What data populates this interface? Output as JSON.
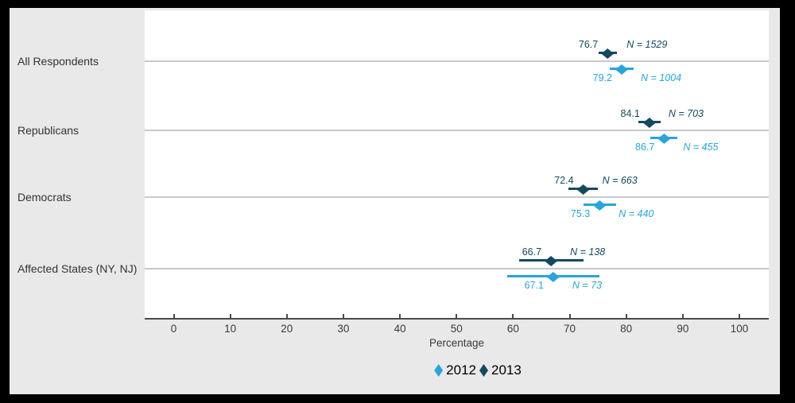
{
  "colors": {
    "frame": "#000000",
    "panel_bg": "#e9e9e9",
    "plot_bg": "#ffffff",
    "gridline": "#c9c9c9",
    "axis": "#4a4a4a",
    "tick_text": "#3a3a3a",
    "category_text": "#333333",
    "legend_text": "#000000",
    "series_2012": "#2aa5d8",
    "series_2013": "#16495e"
  },
  "chart_data": {
    "type": "scatter",
    "subtype": "dot-plot-with-error-bars",
    "title": "",
    "xlabel": "Percentage",
    "ylabel": "",
    "xlim": [
      -5,
      105
    ],
    "x_ticks": [
      "0",
      "10",
      "20",
      "30",
      "40",
      "50",
      "60",
      "70",
      "80",
      "90",
      "100"
    ],
    "x_tick_values": [
      0,
      10,
      20,
      30,
      40,
      50,
      60,
      70,
      80,
      90,
      100
    ],
    "grid": "one horizontal gridline per category",
    "legend_position": "bottom-center",
    "legend": [
      {
        "name": "2012",
        "color_key": "series_2012"
      },
      {
        "name": "2013",
        "color_key": "series_2013"
      }
    ],
    "categories": [
      {
        "label": "All Respondents",
        "points": [
          {
            "series": "2013",
            "value": 76.7,
            "value_label": "76.7",
            "n_label": "N = 1529",
            "ci_low": 75.1,
            "ci_high": 78.3
          },
          {
            "series": "2012",
            "value": 79.2,
            "value_label": "79.2",
            "n_label": "N = 1004",
            "ci_low": 77.1,
            "ci_high": 81.3
          }
        ]
      },
      {
        "label": "Republicans",
        "points": [
          {
            "series": "2013",
            "value": 84.1,
            "value_label": "84.1",
            "n_label": "N = 703",
            "ci_low": 82.1,
            "ci_high": 86.1
          },
          {
            "series": "2012",
            "value": 86.7,
            "value_label": "86.7",
            "n_label": "N = 455",
            "ci_low": 84.3,
            "ci_high": 89.1
          }
        ]
      },
      {
        "label": "Democrats",
        "points": [
          {
            "series": "2013",
            "value": 72.4,
            "value_label": "72.4",
            "n_label": "N = 663",
            "ci_low": 69.8,
            "ci_high": 75.0
          },
          {
            "series": "2012",
            "value": 75.3,
            "value_label": "75.3",
            "n_label": "N = 440",
            "ci_low": 72.4,
            "ci_high": 78.2
          }
        ]
      },
      {
        "label": "Affected States (NY, NJ)",
        "points": [
          {
            "series": "2013",
            "value": 66.7,
            "value_label": "66.7",
            "n_label": "N = 138",
            "ci_low": 61.0,
            "ci_high": 72.4
          },
          {
            "series": "2012",
            "value": 67.1,
            "value_label": "67.1",
            "n_label": "N = 73",
            "ci_low": 58.9,
            "ci_high": 75.3
          }
        ]
      }
    ]
  }
}
